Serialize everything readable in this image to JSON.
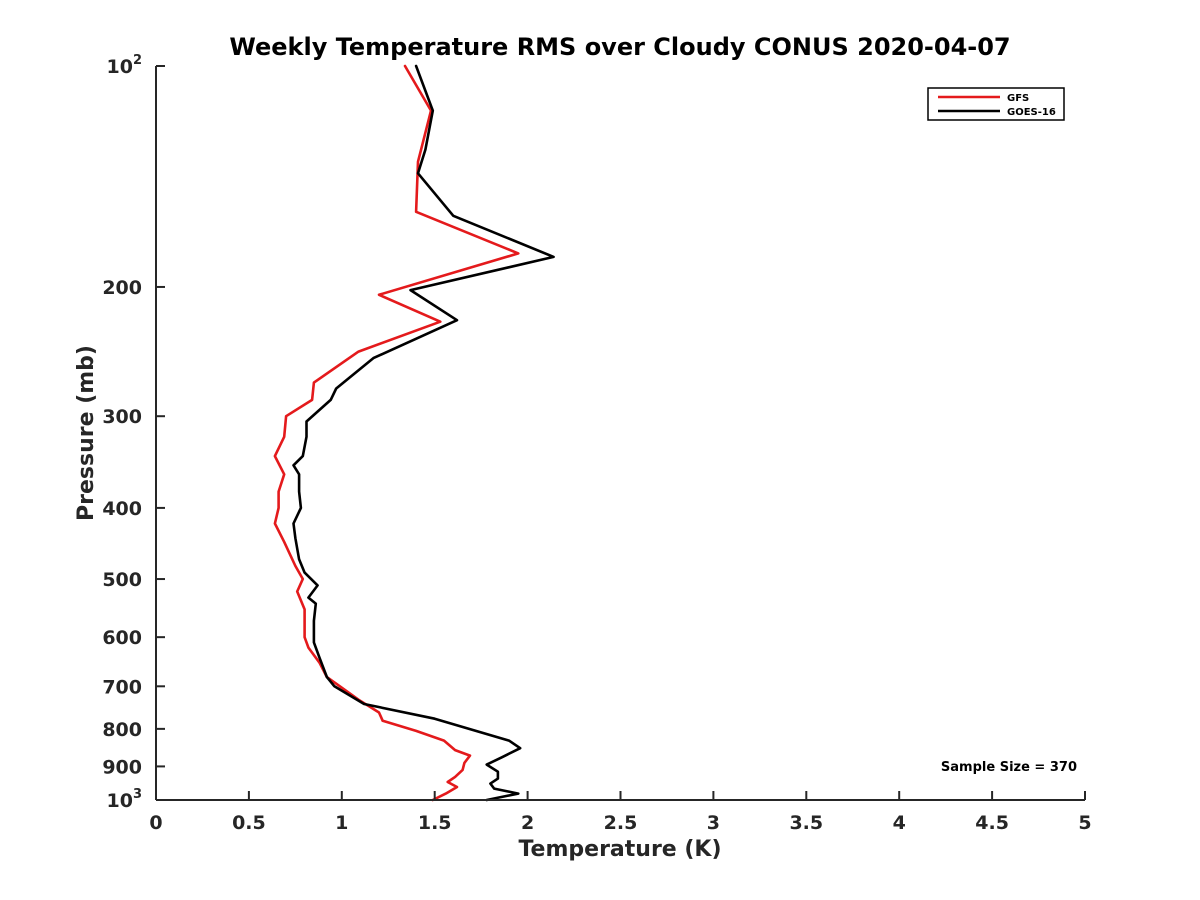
{
  "chart_data": {
    "type": "line",
    "title": "Weekly Temperature RMS over Cloudy CONUS 2020-04-07",
    "xlabel": "Temperature (K)",
    "ylabel": "Pressure (mb)",
    "xlim": [
      0,
      5
    ],
    "ylim": [
      100,
      1000
    ],
    "y_scale": "log",
    "y_reversed": true,
    "grid": false,
    "legend_position": "top-right",
    "x_ticks": [
      {
        "value": 0,
        "label": "0"
      },
      {
        "value": 0.5,
        "label": "0.5"
      },
      {
        "value": 1,
        "label": "1"
      },
      {
        "value": 1.5,
        "label": "1.5"
      },
      {
        "value": 2,
        "label": "2"
      },
      {
        "value": 2.5,
        "label": "2.5"
      },
      {
        "value": 3,
        "label": "3"
      },
      {
        "value": 3.5,
        "label": "3.5"
      },
      {
        "value": 4,
        "label": "4"
      },
      {
        "value": 4.5,
        "label": "4.5"
      },
      {
        "value": 5,
        "label": "5"
      }
    ],
    "y_ticks": [
      {
        "value": 100,
        "base": "10",
        "sup": "2"
      },
      {
        "value": 200,
        "base": "200",
        "sup": ""
      },
      {
        "value": 300,
        "base": "300",
        "sup": ""
      },
      {
        "value": 400,
        "base": "400",
        "sup": ""
      },
      {
        "value": 500,
        "base": "500",
        "sup": ""
      },
      {
        "value": 600,
        "base": "600",
        "sup": ""
      },
      {
        "value": 700,
        "base": "700",
        "sup": ""
      },
      {
        "value": 800,
        "base": "800",
        "sup": ""
      },
      {
        "value": 900,
        "base": "900",
        "sup": ""
      },
      {
        "value": 1000,
        "base": "10",
        "sup": "3"
      }
    ],
    "annotation": "Sample Size = 370",
    "series": [
      {
        "name": "GFS",
        "color": "#e41a1c",
        "points": [
          [
            1.34,
            100
          ],
          [
            1.48,
            115
          ],
          [
            1.41,
            135
          ],
          [
            1.4,
            158
          ],
          [
            1.95,
            180
          ],
          [
            1.2,
            205
          ],
          [
            1.53,
            223
          ],
          [
            1.09,
            245
          ],
          [
            0.85,
            270
          ],
          [
            0.84,
            285
          ],
          [
            0.7,
            300
          ],
          [
            0.69,
            320
          ],
          [
            0.64,
            340
          ],
          [
            0.69,
            360
          ],
          [
            0.66,
            380
          ],
          [
            0.66,
            400
          ],
          [
            0.64,
            420
          ],
          [
            0.69,
            445
          ],
          [
            0.75,
            480
          ],
          [
            0.79,
            500
          ],
          [
            0.76,
            520
          ],
          [
            0.8,
            550
          ],
          [
            0.8,
            580
          ],
          [
            0.8,
            600
          ],
          [
            0.82,
            620
          ],
          [
            0.88,
            650
          ],
          [
            0.92,
            680
          ],
          [
            0.99,
            700
          ],
          [
            1.09,
            730
          ],
          [
            1.2,
            760
          ],
          [
            1.22,
            780
          ],
          [
            1.4,
            805
          ],
          [
            1.55,
            830
          ],
          [
            1.61,
            855
          ],
          [
            1.69,
            870
          ],
          [
            1.66,
            890
          ],
          [
            1.65,
            910
          ],
          [
            1.61,
            930
          ],
          [
            1.57,
            945
          ],
          [
            1.62,
            960
          ],
          [
            1.56,
            980
          ],
          [
            1.49,
            1000
          ]
        ]
      },
      {
        "name": "GOES-16",
        "color": "#000000",
        "points": [
          [
            1.4,
            100
          ],
          [
            1.49,
            115
          ],
          [
            1.45,
            130
          ],
          [
            1.41,
            140
          ],
          [
            1.6,
            160
          ],
          [
            2.14,
            182
          ],
          [
            1.37,
            202
          ],
          [
            1.62,
            222
          ],
          [
            1.17,
            250
          ],
          [
            0.97,
            275
          ],
          [
            0.94,
            285
          ],
          [
            0.81,
            305
          ],
          [
            0.81,
            320
          ],
          [
            0.79,
            340
          ],
          [
            0.74,
            350
          ],
          [
            0.77,
            360
          ],
          [
            0.77,
            380
          ],
          [
            0.78,
            400
          ],
          [
            0.74,
            420
          ],
          [
            0.75,
            440
          ],
          [
            0.77,
            470
          ],
          [
            0.8,
            490
          ],
          [
            0.87,
            510
          ],
          [
            0.82,
            530
          ],
          [
            0.86,
            540
          ],
          [
            0.85,
            570
          ],
          [
            0.85,
            590
          ],
          [
            0.85,
            610
          ],
          [
            0.88,
            640
          ],
          [
            0.92,
            680
          ],
          [
            0.96,
            700
          ],
          [
            1.12,
            740
          ],
          [
            1.5,
            775
          ],
          [
            1.9,
            830
          ],
          [
            1.96,
            850
          ],
          [
            1.86,
            875
          ],
          [
            1.78,
            895
          ],
          [
            1.84,
            915
          ],
          [
            1.84,
            935
          ],
          [
            1.8,
            950
          ],
          [
            1.82,
            965
          ],
          [
            1.95,
            980
          ],
          [
            1.78,
            1000
          ]
        ]
      }
    ]
  }
}
